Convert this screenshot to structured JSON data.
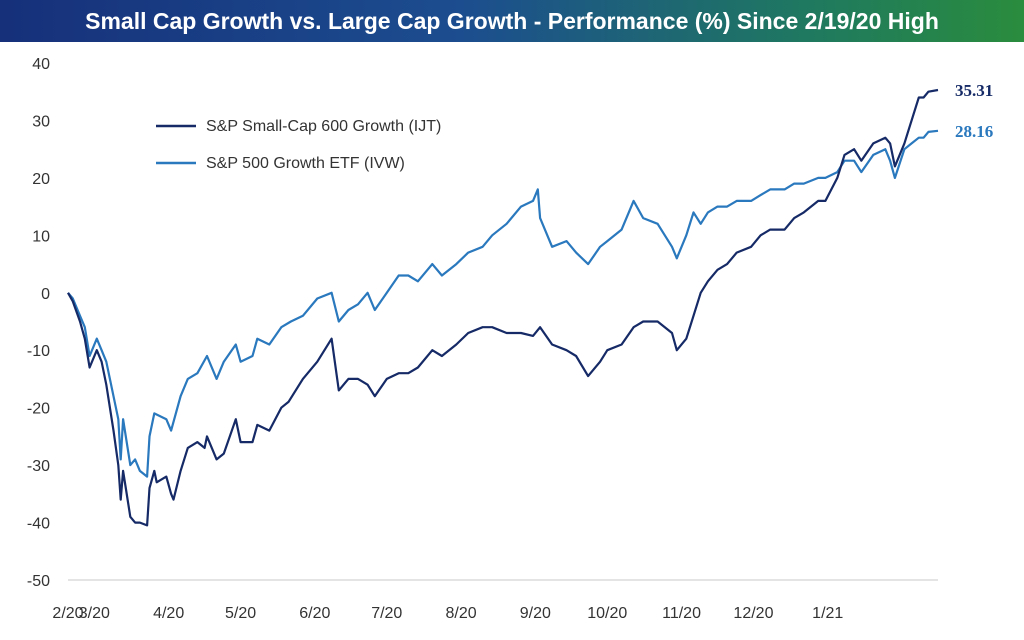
{
  "title": "Small Cap Growth vs. Large Cap Growth - Performance (%) Since 2/19/20 High",
  "colors": {
    "small_cap": "#152a66",
    "large_cap": "#2a78bd"
  },
  "chart_data": {
    "type": "line",
    "title": "Small Cap Growth vs. Large Cap Growth - Performance (%) Since 2/19/20 High",
    "xlabel": "",
    "ylabel": "",
    "x_tick_labels": [
      "2/20",
      "3/20",
      "4/20",
      "5/20",
      "6/20",
      "7/20",
      "8/20",
      "9/20",
      "10/20",
      "11/20",
      "12/20",
      "1/21"
    ],
    "ylim": [
      -50,
      40
    ],
    "y_ticks": [
      -50,
      -40,
      -30,
      -20,
      -10,
      0,
      10,
      20,
      30,
      40
    ],
    "grid": false,
    "legend_position": "top-left",
    "series": [
      {
        "name": "S&P Small-Cap 600 Growth (IJT)",
        "color": "#152a66",
        "end_label": "35.31",
        "points": [
          [
            "2/19/20",
            0
          ],
          [
            "2/21/20",
            -1.5
          ],
          [
            "2/24/20",
            -5
          ],
          [
            "2/26/20",
            -8
          ],
          [
            "2/28/20",
            -13
          ],
          [
            "3/2/20",
            -10
          ],
          [
            "3/4/20",
            -12
          ],
          [
            "3/6/20",
            -16
          ],
          [
            "3/9/20",
            -24
          ],
          [
            "3/11/20",
            -30
          ],
          [
            "3/12/20",
            -36
          ],
          [
            "3/13/20",
            -31
          ],
          [
            "3/16/20",
            -39
          ],
          [
            "3/18/20",
            -40
          ],
          [
            "3/20/20",
            -40
          ],
          [
            "3/23/20",
            -40.5
          ],
          [
            "3/24/20",
            -34
          ],
          [
            "3/26/20",
            -31
          ],
          [
            "3/27/20",
            -33
          ],
          [
            "3/31/20",
            -32
          ],
          [
            "4/2/20",
            -35
          ],
          [
            "4/3/20",
            -36
          ],
          [
            "4/6/20",
            -31
          ],
          [
            "4/9/20",
            -27
          ],
          [
            "4/13/20",
            -26
          ],
          [
            "4/16/20",
            -27
          ],
          [
            "4/17/20",
            -25
          ],
          [
            "4/21/20",
            -29
          ],
          [
            "4/24/20",
            -28
          ],
          [
            "4/29/20",
            -22
          ],
          [
            "5/1/20",
            -26
          ],
          [
            "5/6/20",
            -26
          ],
          [
            "5/8/20",
            -23
          ],
          [
            "5/13/20",
            -24
          ],
          [
            "5/18/20",
            -20
          ],
          [
            "5/21/20",
            -19
          ],
          [
            "5/27/20",
            -15
          ],
          [
            "6/2/20",
            -12
          ],
          [
            "6/8/20",
            -8
          ],
          [
            "6/11/20",
            -17
          ],
          [
            "6/15/20",
            -15
          ],
          [
            "6/19/20",
            -15
          ],
          [
            "6/23/20",
            -16
          ],
          [
            "6/26/20",
            -18
          ],
          [
            "7/1/20",
            -15
          ],
          [
            "7/6/20",
            -14
          ],
          [
            "7/10/20",
            -14
          ],
          [
            "7/14/20",
            -13
          ],
          [
            "7/20/20",
            -10
          ],
          [
            "7/24/20",
            -11
          ],
          [
            "7/30/20",
            -9
          ],
          [
            "8/4/20",
            -7
          ],
          [
            "8/10/20",
            -6
          ],
          [
            "8/14/20",
            -6
          ],
          [
            "8/20/20",
            -7
          ],
          [
            "8/26/20",
            -7
          ],
          [
            "8/31/20",
            -7.5
          ],
          [
            "9/3/20",
            -6
          ],
          [
            "9/8/20",
            -9
          ],
          [
            "9/14/20",
            -10
          ],
          [
            "9/18/20",
            -11
          ],
          [
            "9/23/20",
            -14.5
          ],
          [
            "9/28/20",
            -12
          ],
          [
            "10/1/20",
            -10
          ],
          [
            "10/7/20",
            -9
          ],
          [
            "10/12/20",
            -6
          ],
          [
            "10/16/20",
            -5
          ],
          [
            "10/22/20",
            -5
          ],
          [
            "10/28/20",
            -7
          ],
          [
            "10/30/20",
            -10
          ],
          [
            "11/3/20",
            -8
          ],
          [
            "11/6/20",
            -4
          ],
          [
            "11/9/20",
            0
          ],
          [
            "11/12/20",
            2
          ],
          [
            "11/16/20",
            4
          ],
          [
            "11/20/20",
            5
          ],
          [
            "11/24/20",
            7
          ],
          [
            "11/30/20",
            8
          ],
          [
            "12/4/20",
            10
          ],
          [
            "12/8/20",
            11
          ],
          [
            "12/14/20",
            11
          ],
          [
            "12/18/20",
            13
          ],
          [
            "12/22/20",
            14
          ],
          [
            "12/28/20",
            16
          ],
          [
            "12/31/20",
            16
          ],
          [
            "1/5/21",
            20
          ],
          [
            "1/8/21",
            24
          ],
          [
            "1/12/21",
            25
          ],
          [
            "1/15/21",
            23
          ],
          [
            "1/20/21",
            26
          ],
          [
            "1/25/21",
            27
          ],
          [
            "1/27/21",
            26
          ],
          [
            "1/29/21",
            22
          ],
          [
            "2/2/21",
            26
          ],
          [
            "2/5/21",
            30
          ],
          [
            "2/8/21",
            34
          ],
          [
            "2/10/21",
            34
          ],
          [
            "2/12/21",
            35
          ],
          [
            "2/16/21",
            35.3
          ]
        ]
      },
      {
        "name": "S&P 500 Growth ETF (IVW)",
        "color": "#2a78bd",
        "end_label": "28.16",
        "points": [
          [
            "2/19/20",
            0
          ],
          [
            "2/21/20",
            -1
          ],
          [
            "2/24/20",
            -4
          ],
          [
            "2/26/20",
            -6
          ],
          [
            "2/28/20",
            -11
          ],
          [
            "3/2/20",
            -8
          ],
          [
            "3/4/20",
            -10
          ],
          [
            "3/6/20",
            -12
          ],
          [
            "3/9/20",
            -18
          ],
          [
            "3/11/20",
            -22
          ],
          [
            "3/12/20",
            -29
          ],
          [
            "3/13/20",
            -22
          ],
          [
            "3/16/20",
            -30
          ],
          [
            "3/18/20",
            -29
          ],
          [
            "3/20/20",
            -31
          ],
          [
            "3/23/20",
            -32
          ],
          [
            "3/24/20",
            -25
          ],
          [
            "3/26/20",
            -21
          ],
          [
            "3/31/20",
            -22
          ],
          [
            "4/2/20",
            -24
          ],
          [
            "4/6/20",
            -18
          ],
          [
            "4/9/20",
            -15
          ],
          [
            "4/13/20",
            -14
          ],
          [
            "4/17/20",
            -11
          ],
          [
            "4/21/20",
            -15
          ],
          [
            "4/24/20",
            -12
          ],
          [
            "4/29/20",
            -9
          ],
          [
            "5/1/20",
            -12
          ],
          [
            "5/6/20",
            -11
          ],
          [
            "5/8/20",
            -8
          ],
          [
            "5/13/20",
            -9
          ],
          [
            "5/18/20",
            -6
          ],
          [
            "5/22/20",
            -5
          ],
          [
            "5/27/20",
            -4
          ],
          [
            "6/2/20",
            -1
          ],
          [
            "6/8/20",
            0
          ],
          [
            "6/11/20",
            -5
          ],
          [
            "6/15/20",
            -3
          ],
          [
            "6/19/20",
            -2
          ],
          [
            "6/23/20",
            0
          ],
          [
            "6/26/20",
            -3
          ],
          [
            "7/1/20",
            0
          ],
          [
            "7/6/20",
            3
          ],
          [
            "7/10/20",
            3
          ],
          [
            "7/14/20",
            2
          ],
          [
            "7/20/20",
            5
          ],
          [
            "7/24/20",
            3
          ],
          [
            "7/30/20",
            5
          ],
          [
            "8/4/20",
            7
          ],
          [
            "8/10/20",
            8
          ],
          [
            "8/14/20",
            10
          ],
          [
            "8/20/20",
            12
          ],
          [
            "8/26/20",
            15
          ],
          [
            "8/31/20",
            16
          ],
          [
            "9/2/20",
            18
          ],
          [
            "9/3/20",
            13
          ],
          [
            "9/8/20",
            8
          ],
          [
            "9/14/20",
            9
          ],
          [
            "9/18/20",
            7
          ],
          [
            "9/23/20",
            5
          ],
          [
            "9/28/20",
            8
          ],
          [
            "10/1/20",
            9
          ],
          [
            "10/7/20",
            11
          ],
          [
            "10/12/20",
            16
          ],
          [
            "10/16/20",
            13
          ],
          [
            "10/22/20",
            12
          ],
          [
            "10/28/20",
            8
          ],
          [
            "10/30/20",
            6
          ],
          [
            "11/3/20",
            10
          ],
          [
            "11/6/20",
            14
          ],
          [
            "11/9/20",
            12
          ],
          [
            "11/12/20",
            14
          ],
          [
            "11/16/20",
            15
          ],
          [
            "11/20/20",
            15
          ],
          [
            "11/24/20",
            16
          ],
          [
            "11/30/20",
            16
          ],
          [
            "12/4/20",
            17
          ],
          [
            "12/8/20",
            18
          ],
          [
            "12/14/20",
            18
          ],
          [
            "12/18/20",
            19
          ],
          [
            "12/22/20",
            19
          ],
          [
            "12/28/20",
            20
          ],
          [
            "12/31/20",
            20
          ],
          [
            "1/5/21",
            21
          ],
          [
            "1/8/21",
            23
          ],
          [
            "1/12/21",
            23
          ],
          [
            "1/15/21",
            21
          ],
          [
            "1/20/21",
            24
          ],
          [
            "1/25/21",
            25
          ],
          [
            "1/27/21",
            23
          ],
          [
            "1/29/21",
            20
          ],
          [
            "2/2/21",
            25
          ],
          [
            "2/5/21",
            26
          ],
          [
            "2/8/21",
            27
          ],
          [
            "2/10/21",
            27
          ],
          [
            "2/12/21",
            28
          ],
          [
            "2/16/21",
            28.2
          ]
        ]
      }
    ]
  }
}
